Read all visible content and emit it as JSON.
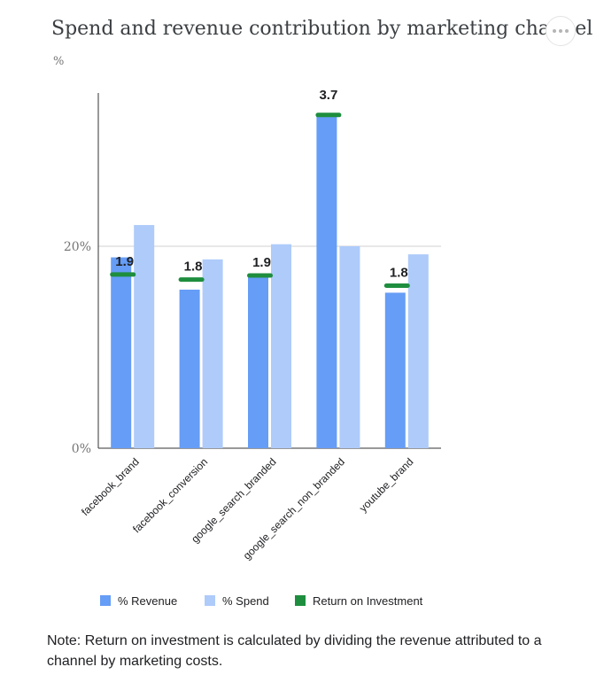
{
  "header": {
    "title": "Spend and revenue contribution by marketing channel",
    "unit": "%"
  },
  "chart_data": {
    "type": "bar",
    "categories": [
      "facebook_brand",
      "facebook_conversion",
      "google_search_branded",
      "google_search_non_branded",
      "youtube_brand"
    ],
    "series": [
      {
        "name": "% Revenue",
        "values": [
          18.9,
          15.7,
          17.2,
          33.0,
          15.4
        ],
        "color": "#669df6"
      },
      {
        "name": "% Spend",
        "values": [
          22.1,
          18.7,
          20.2,
          20.0,
          19.2
        ],
        "color": "#aecbfa"
      }
    ],
    "roi": {
      "name": "Return on Investment",
      "values": [
        1.9,
        1.8,
        1.9,
        3.7,
        1.8
      ],
      "marker_levels": [
        17.2,
        16.7,
        17.1,
        33.0,
        16.1
      ],
      "color": "#1e8e3e"
    },
    "y_ticks": [
      {
        "value": 0,
        "label": "0%"
      },
      {
        "value": 20,
        "label": "20%"
      }
    ],
    "ylim": [
      0,
      35
    ],
    "grid": true,
    "legend": "bottom"
  },
  "footer": {
    "note": "Note: Return on investment is calculated by dividing the revenue attributed to a channel by marketing costs."
  }
}
